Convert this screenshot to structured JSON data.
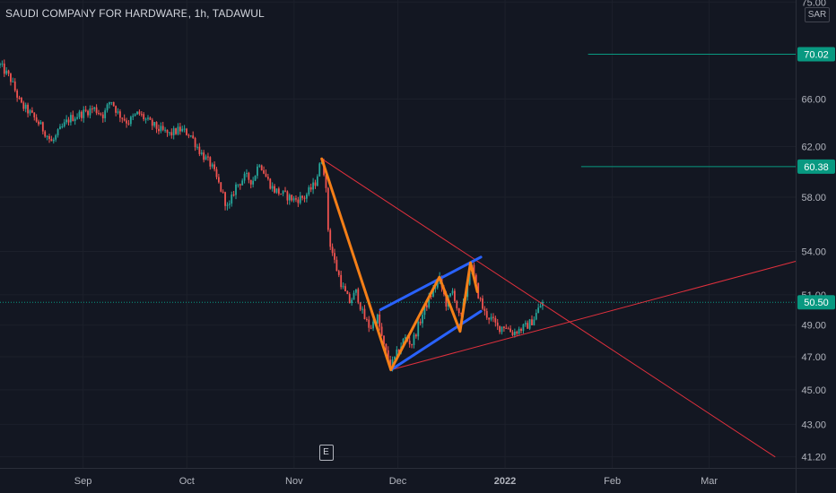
{
  "header": {
    "title": "SAUDI COMPANY FOR HARDWARE, 1h, TADAWUL",
    "currency": "SAR"
  },
  "earnings_marker": "E",
  "colors": {
    "background": "#131722",
    "up": "#26a69a",
    "down": "#ef5350",
    "zigzag": "#f57f17",
    "channel": "#2962ff",
    "trendline": "#e0303d",
    "target": "#089981",
    "price_tag": "#089981"
  },
  "chart_data": {
    "type": "candlestick",
    "symbol": "SAUDI COMPANY FOR HARDWARE",
    "interval": "1h",
    "exchange": "TADAWUL",
    "currency": "SAR",
    "x_range": [
      "2021-08-08",
      "2022-03-26"
    ],
    "y_range": [
      40.6,
      75.2
    ],
    "y_scale": "log",
    "x_ticks": [
      {
        "date": "2021-09-01",
        "label": "Sep"
      },
      {
        "date": "2021-10-01",
        "label": "Oct"
      },
      {
        "date": "2021-11-01",
        "label": "Nov"
      },
      {
        "date": "2021-12-01",
        "label": "Dec"
      },
      {
        "date": "2022-01-01",
        "label": "2022"
      },
      {
        "date": "2022-02-01",
        "label": "Feb"
      },
      {
        "date": "2022-03-01",
        "label": "Mar"
      }
    ],
    "y_ticks": [
      "75.00",
      "66.00",
      "62.00",
      "58.00",
      "54.00",
      "51.00",
      "49.00",
      "47.00",
      "45.00",
      "43.00",
      "41.20"
    ],
    "price_path": [
      [
        "2021-08-08",
        69.0
      ],
      [
        "2021-08-11",
        67.8
      ],
      [
        "2021-08-14",
        65.5
      ],
      [
        "2021-08-16",
        65.0
      ],
      [
        "2021-08-19",
        64.0
      ],
      [
        "2021-08-21",
        63.2
      ],
      [
        "2021-08-23",
        62.3
      ],
      [
        "2021-08-25",
        63.2
      ],
      [
        "2021-08-28",
        64.3
      ],
      [
        "2021-09-01",
        64.8
      ],
      [
        "2021-09-04",
        65.2
      ],
      [
        "2021-09-07",
        64.6
      ],
      [
        "2021-09-09",
        66.0
      ],
      [
        "2021-09-11",
        64.8
      ],
      [
        "2021-09-14",
        64.0
      ],
      [
        "2021-09-17",
        64.8
      ],
      [
        "2021-09-20",
        64.0
      ],
      [
        "2021-09-23",
        63.4
      ],
      [
        "2021-09-26",
        63.0
      ],
      [
        "2021-09-29",
        63.4
      ],
      [
        "2021-10-02",
        63.0
      ],
      [
        "2021-10-05",
        61.5
      ],
      [
        "2021-10-08",
        60.5
      ],
      [
        "2021-10-11",
        58.5
      ],
      [
        "2021-10-13",
        57.0
      ],
      [
        "2021-10-15",
        58.8
      ],
      [
        "2021-10-18",
        59.6
      ],
      [
        "2021-10-20",
        59.2
      ],
      [
        "2021-10-22",
        60.8
      ],
      [
        "2021-10-24",
        59.5
      ],
      [
        "2021-10-26",
        58.6
      ],
      [
        "2021-10-29",
        58.2
      ],
      [
        "2021-11-01",
        57.8
      ],
      [
        "2021-11-04",
        58.0
      ],
      [
        "2021-11-07",
        59.0
      ],
      [
        "2021-11-09",
        61.0
      ],
      [
        "2021-11-10",
        59.5
      ],
      [
        "2021-11-11",
        55.0
      ],
      [
        "2021-11-13",
        53.0
      ],
      [
        "2021-11-15",
        51.5
      ],
      [
        "2021-11-17",
        50.5
      ],
      [
        "2021-11-19",
        51.2
      ],
      [
        "2021-11-21",
        49.6
      ],
      [
        "2021-11-23",
        48.8
      ],
      [
        "2021-11-25",
        49.6
      ],
      [
        "2021-11-27",
        47.6
      ],
      [
        "2021-11-29",
        46.4
      ],
      [
        "2021-12-01",
        47.3
      ],
      [
        "2021-12-03",
        48.2
      ],
      [
        "2021-12-05",
        47.8
      ],
      [
        "2021-12-07",
        49.0
      ],
      [
        "2021-12-09",
        50.2
      ],
      [
        "2021-12-11",
        51.2
      ],
      [
        "2021-12-13",
        52.1
      ],
      [
        "2021-12-15",
        50.4
      ],
      [
        "2021-12-17",
        51.3
      ],
      [
        "2021-12-19",
        49.2
      ],
      [
        "2021-12-21",
        51.5
      ],
      [
        "2021-12-22",
        53.2
      ],
      [
        "2021-12-24",
        51.2
      ],
      [
        "2021-12-26",
        49.8
      ],
      [
        "2021-12-28",
        49.4
      ],
      [
        "2021-12-30",
        48.8
      ],
      [
        "2022-01-01",
        49.0
      ],
      [
        "2022-01-03",
        48.5
      ],
      [
        "2022-01-05",
        48.7
      ],
      [
        "2022-01-07",
        48.9
      ],
      [
        "2022-01-09",
        49.3
      ],
      [
        "2022-01-11",
        50.2
      ],
      [
        "2022-01-12",
        50.5
      ]
    ],
    "last_price": "50.50",
    "targets": [
      {
        "label": "70.02",
        "value": 70.02,
        "from": "2022-01-25"
      },
      {
        "label": "60.38",
        "value": 60.38,
        "from": "2022-01-23"
      }
    ],
    "annotations": {
      "zigzag": [
        [
          "2021-11-09",
          61.0
        ],
        [
          "2021-11-29",
          46.2
        ],
        [
          "2021-12-13",
          52.2
        ],
        [
          "2021-12-19",
          48.6
        ],
        [
          "2021-12-22",
          53.2
        ],
        [
          "2021-12-24",
          51.2
        ]
      ],
      "channel_upper": [
        [
          "2021-11-26",
          50.0
        ],
        [
          "2021-12-25",
          53.6
        ]
      ],
      "channel_lower": [
        [
          "2021-11-29",
          46.2
        ],
        [
          "2021-12-25",
          49.9
        ]
      ],
      "trendline_down": [
        [
          "2021-11-09",
          61.0
        ],
        [
          "2022-03-20",
          41.2
        ]
      ],
      "trendline_up": [
        [
          "2021-11-29",
          46.2
        ],
        [
          "2022-03-26",
          53.3
        ]
      ]
    },
    "earnings_date": "2021-11-10"
  }
}
